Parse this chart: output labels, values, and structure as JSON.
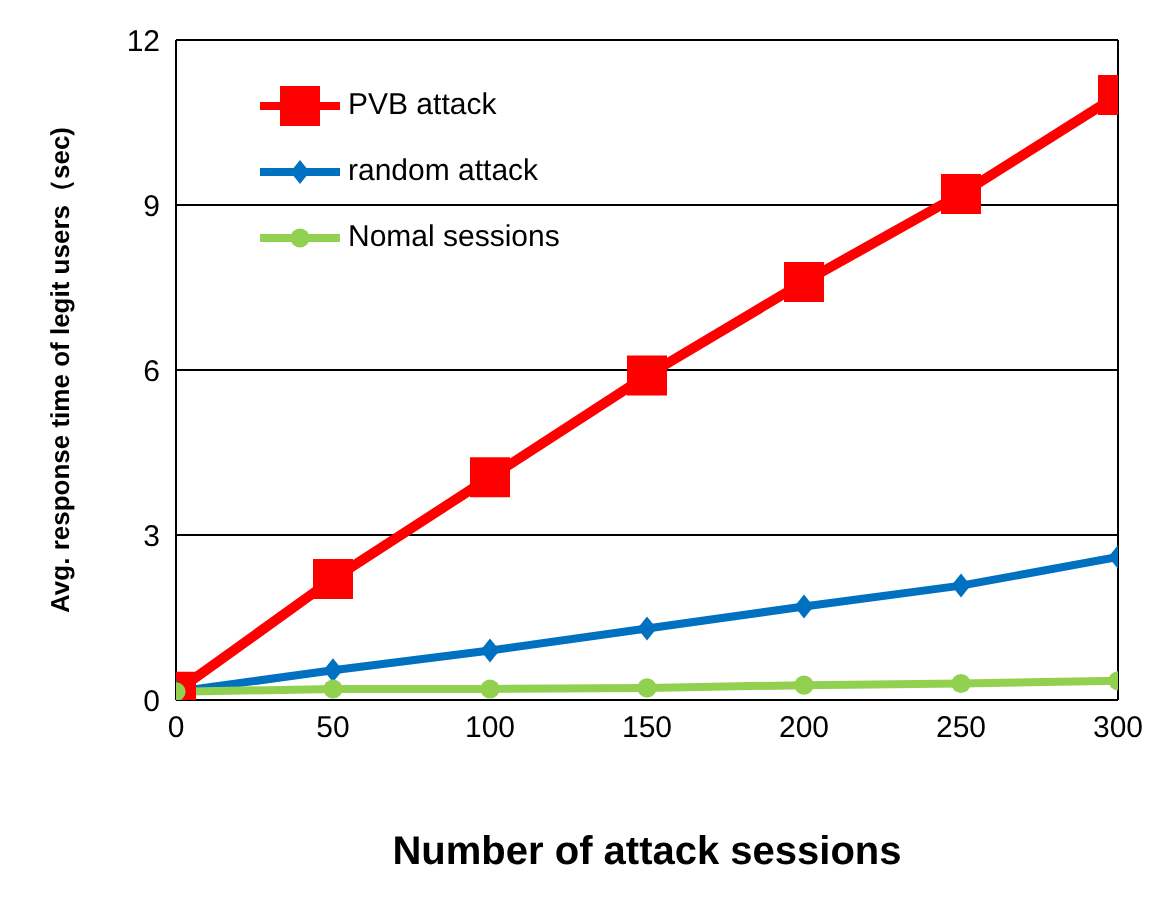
{
  "chart_data": {
    "type": "line",
    "xlabel": "Number of attack sessions",
    "ylabel": "Avg. response time of legit users（sec)",
    "x": [
      0,
      50,
      100,
      150,
      200,
      250,
      300
    ],
    "xlim": [
      0,
      300
    ],
    "xticks": [
      0,
      50,
      100,
      150,
      200,
      250,
      300
    ],
    "ylim": [
      0,
      12
    ],
    "yticks": [
      0,
      3,
      6,
      9,
      12
    ],
    "grid": "y",
    "legend": "top left",
    "series": [
      {
        "name": "PVB attack",
        "color": "#ff0000",
        "marker": "square",
        "values": [
          0.15,
          2.2,
          4.05,
          5.9,
          7.6,
          9.2,
          11
        ]
      },
      {
        "name": "random attack",
        "color": "#0070c0",
        "marker": "diamond",
        "values": [
          0.15,
          0.54,
          0.9,
          1.3,
          1.7,
          2.08,
          2.6
        ]
      },
      {
        "name": "Nomal sessions",
        "color": "#92d050",
        "marker": "circle",
        "values": [
          0.15,
          0.2,
          0.2,
          0.22,
          0.27,
          0.3,
          0.35
        ]
      }
    ]
  }
}
